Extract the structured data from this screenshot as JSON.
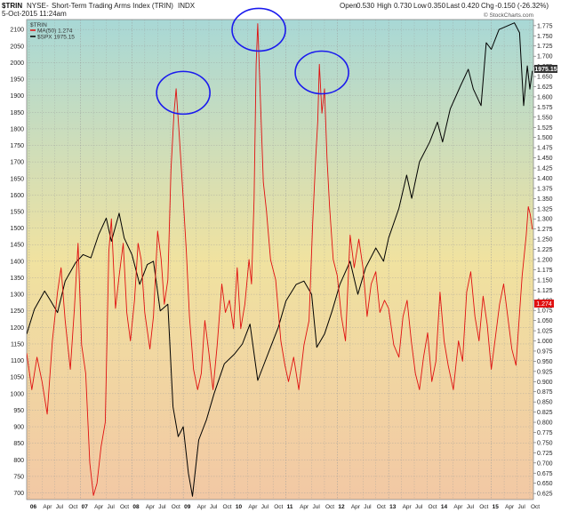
{
  "header": {
    "symbol": "$TRIN",
    "exchange": "NYSE",
    "name": "Short-Term Trading Arms Index (TRIN)",
    "index_tag": "INDX",
    "date": "5-Oct-2015 11:24am",
    "quote": {
      "open_label": "Open",
      "open": "0.530",
      "high_label": "High",
      "high": "0.730",
      "low_label": "Low",
      "low": "0.350",
      "last_label": "Last",
      "last": "0.420",
      "chg_label": "Chg",
      "chg": "-0.150 (-26.32%)"
    }
  },
  "watermark": "© StockCharts.com",
  "legend": {
    "title": "$TRIN",
    "ma": "MA(50) 1.274",
    "spx": "$SPX 1975.15"
  },
  "badges": {
    "spx_last": "1975.15",
    "ma_last": "1.274"
  },
  "colors": {
    "ma_line": "#e01010",
    "spx_line": "#000000",
    "circle": "#1a1aee",
    "bg_top": "#a8d8d6",
    "bg_mid": "#f0e2a0",
    "bg_bottom": "#f2c8a4",
    "badge_spx": "#333333",
    "badge_ma": "#e01010"
  },
  "chart_data": {
    "type": "line",
    "title": "$TRIN NYSE - Short-Term Trading Arms Index (TRIN) INDX",
    "left_axis": {
      "label": "",
      "ticks": [
        700,
        750,
        800,
        850,
        900,
        950,
        1000,
        1050,
        1100,
        1150,
        1200,
        1250,
        1300,
        1350,
        1400,
        1450,
        1500,
        1550,
        1600,
        1650,
        1700,
        1750,
        1800,
        1850,
        1900,
        1950,
        2000,
        2050,
        2100
      ],
      "range": [
        680,
        2130
      ]
    },
    "right_axis": {
      "label": "",
      "ticks": [
        "0.625",
        "0.650",
        "0.675",
        "0.700",
        "0.725",
        "0.750",
        "0.775",
        "0.800",
        "0.825",
        "0.850",
        "0.875",
        "0.900",
        "0.925",
        "0.950",
        "0.975",
        "1.000",
        "1.025",
        "1.050",
        "1.075",
        "1.100",
        "1.125",
        "1.150",
        "1.175",
        "1.200",
        "1.225",
        "1.250",
        "1.275",
        "1.300",
        "1.325",
        "1.350",
        "1.375",
        "1.400",
        "1.425",
        "1.450",
        "1.475",
        "1.500",
        "1.525",
        "1.550",
        "1.575",
        "1.600",
        "1.625",
        "1.650",
        "1.675",
        "1.700",
        "1.725",
        "1.750",
        "1.775"
      ],
      "range": [
        0.61,
        1.79
      ]
    },
    "x_axis": {
      "labels": [
        {
          "t": 2006.0,
          "label": "06",
          "bold": true
        },
        {
          "t": 2006.25,
          "label": "Apr"
        },
        {
          "t": 2006.5,
          "label": "Jul"
        },
        {
          "t": 2006.75,
          "label": "Oct"
        },
        {
          "t": 2007.0,
          "label": "07",
          "bold": true
        },
        {
          "t": 2007.25,
          "label": "Apr"
        },
        {
          "t": 2007.5,
          "label": "Jul"
        },
        {
          "t": 2007.75,
          "label": "Oct"
        },
        {
          "t": 2008.0,
          "label": "08",
          "bold": true
        },
        {
          "t": 2008.25,
          "label": "Apr"
        },
        {
          "t": 2008.5,
          "label": "Jul"
        },
        {
          "t": 2008.75,
          "label": "Oct"
        },
        {
          "t": 2009.0,
          "label": "09",
          "bold": true
        },
        {
          "t": 2009.25,
          "label": "Apr"
        },
        {
          "t": 2009.5,
          "label": "Jul"
        },
        {
          "t": 2009.75,
          "label": "Oct"
        },
        {
          "t": 2010.0,
          "label": "10",
          "bold": true
        },
        {
          "t": 2010.25,
          "label": "Apr"
        },
        {
          "t": 2010.5,
          "label": "Jul"
        },
        {
          "t": 2010.75,
          "label": "Oct"
        },
        {
          "t": 2011.0,
          "label": "11",
          "bold": true
        },
        {
          "t": 2011.25,
          "label": "Apr"
        },
        {
          "t": 2011.5,
          "label": "Jul"
        },
        {
          "t": 2011.75,
          "label": "Oct"
        },
        {
          "t": 2012.0,
          "label": "12",
          "bold": true
        },
        {
          "t": 2012.25,
          "label": "Apr"
        },
        {
          "t": 2012.5,
          "label": "Jul"
        },
        {
          "t": 2012.75,
          "label": "Oct"
        },
        {
          "t": 2013.0,
          "label": "13",
          "bold": true
        },
        {
          "t": 2013.25,
          "label": "Apr"
        },
        {
          "t": 2013.5,
          "label": "Jul"
        },
        {
          "t": 2013.75,
          "label": "Oct"
        },
        {
          "t": 2014.0,
          "label": "14",
          "bold": true
        },
        {
          "t": 2014.25,
          "label": "Apr"
        },
        {
          "t": 2014.5,
          "label": "Jul"
        },
        {
          "t": 2014.75,
          "label": "Oct"
        },
        {
          "t": 2015.0,
          "label": "15",
          "bold": true
        },
        {
          "t": 2015.25,
          "label": "Apr"
        },
        {
          "t": 2015.5,
          "label": "Jul"
        },
        {
          "t": 2015.75,
          "label": "Oct"
        }
      ],
      "range": [
        2005.95,
        2015.82
      ]
    },
    "grid": true,
    "legend_position": "top-left",
    "series": [
      {
        "name": "$SPX 1975.15",
        "axis": "left",
        "color": "#000000",
        "points": [
          [
            2005.95,
            1180
          ],
          [
            2006.1,
            1255
          ],
          [
            2006.3,
            1310
          ],
          [
            2006.42,
            1280
          ],
          [
            2006.55,
            1245
          ],
          [
            2006.7,
            1340
          ],
          [
            2006.9,
            1395
          ],
          [
            2007.05,
            1420
          ],
          [
            2007.2,
            1410
          ],
          [
            2007.35,
            1480
          ],
          [
            2007.5,
            1530
          ],
          [
            2007.6,
            1460
          ],
          [
            2007.75,
            1545
          ],
          [
            2007.85,
            1470
          ],
          [
            2008.0,
            1420
          ],
          [
            2008.15,
            1330
          ],
          [
            2008.3,
            1390
          ],
          [
            2008.42,
            1400
          ],
          [
            2008.55,
            1250
          ],
          [
            2008.7,
            1270
          ],
          [
            2008.8,
            960
          ],
          [
            2008.9,
            870
          ],
          [
            2009.0,
            900
          ],
          [
            2009.1,
            760
          ],
          [
            2009.18,
            690
          ],
          [
            2009.3,
            860
          ],
          [
            2009.45,
            920
          ],
          [
            2009.6,
            1000
          ],
          [
            2009.8,
            1090
          ],
          [
            2010.0,
            1120
          ],
          [
            2010.15,
            1150
          ],
          [
            2010.3,
            1210
          ],
          [
            2010.45,
            1040
          ],
          [
            2010.55,
            1080
          ],
          [
            2010.7,
            1140
          ],
          [
            2010.85,
            1200
          ],
          [
            2011.0,
            1280
          ],
          [
            2011.2,
            1330
          ],
          [
            2011.35,
            1340
          ],
          [
            2011.5,
            1300
          ],
          [
            2011.6,
            1140
          ],
          [
            2011.75,
            1180
          ],
          [
            2011.9,
            1250
          ],
          [
            2012.05,
            1330
          ],
          [
            2012.25,
            1400
          ],
          [
            2012.4,
            1300
          ],
          [
            2012.55,
            1380
          ],
          [
            2012.75,
            1440
          ],
          [
            2012.9,
            1400
          ],
          [
            2013.0,
            1470
          ],
          [
            2013.2,
            1560
          ],
          [
            2013.35,
            1660
          ],
          [
            2013.45,
            1590
          ],
          [
            2013.6,
            1700
          ],
          [
            2013.8,
            1760
          ],
          [
            2013.95,
            1820
          ],
          [
            2014.05,
            1760
          ],
          [
            2014.2,
            1860
          ],
          [
            2014.4,
            1930
          ],
          [
            2014.55,
            1980
          ],
          [
            2014.65,
            1920
          ],
          [
            2014.8,
            1870
          ],
          [
            2014.9,
            2060
          ],
          [
            2015.0,
            2040
          ],
          [
            2015.15,
            2100
          ],
          [
            2015.3,
            2110
          ],
          [
            2015.45,
            2120
          ],
          [
            2015.55,
            2090
          ],
          [
            2015.63,
            1870
          ],
          [
            2015.7,
            1990
          ],
          [
            2015.75,
            1920
          ],
          [
            2015.8,
            1975
          ]
        ]
      },
      {
        "name": "MA(50) 1.274",
        "axis": "right",
        "color": "#e01010",
        "points": [
          [
            2005.95,
            0.97
          ],
          [
            2006.05,
            0.88
          ],
          [
            2006.15,
            0.96
          ],
          [
            2006.25,
            0.9
          ],
          [
            2006.35,
            0.82
          ],
          [
            2006.45,
            1.0
          ],
          [
            2006.55,
            1.12
          ],
          [
            2006.62,
            1.18
          ],
          [
            2006.7,
            1.05
          ],
          [
            2006.8,
            0.93
          ],
          [
            2006.88,
            1.08
          ],
          [
            2006.95,
            1.24
          ],
          [
            2007.02,
            0.99
          ],
          [
            2007.1,
            0.92
          ],
          [
            2007.18,
            0.7
          ],
          [
            2007.25,
            0.62
          ],
          [
            2007.32,
            0.65
          ],
          [
            2007.4,
            0.74
          ],
          [
            2007.48,
            0.8
          ],
          [
            2007.55,
            1.22
          ],
          [
            2007.6,
            1.3
          ],
          [
            2007.68,
            1.08
          ],
          [
            2007.75,
            1.16
          ],
          [
            2007.83,
            1.24
          ],
          [
            2007.9,
            1.07
          ],
          [
            2007.97,
            1.0
          ],
          [
            2008.05,
            1.1
          ],
          [
            2008.12,
            1.24
          ],
          [
            2008.18,
            1.2
          ],
          [
            2008.25,
            1.07
          ],
          [
            2008.35,
            0.98
          ],
          [
            2008.42,
            1.06
          ],
          [
            2008.5,
            1.27
          ],
          [
            2008.57,
            1.2
          ],
          [
            2008.63,
            1.09
          ],
          [
            2008.7,
            1.15
          ],
          [
            2008.76,
            1.42
          ],
          [
            2008.82,
            1.56
          ],
          [
            2008.86,
            1.62
          ],
          [
            2008.92,
            1.51
          ],
          [
            2009.0,
            1.35
          ],
          [
            2009.06,
            1.22
          ],
          [
            2009.12,
            1.06
          ],
          [
            2009.2,
            0.93
          ],
          [
            2009.28,
            0.88
          ],
          [
            2009.35,
            0.92
          ],
          [
            2009.42,
            1.05
          ],
          [
            2009.5,
            0.97
          ],
          [
            2009.58,
            0.88
          ],
          [
            2009.66,
            0.99
          ],
          [
            2009.75,
            1.14
          ],
          [
            2009.82,
            1.07
          ],
          [
            2009.9,
            1.1
          ],
          [
            2009.98,
            1.03
          ],
          [
            2010.05,
            1.18
          ],
          [
            2010.12,
            1.03
          ],
          [
            2010.2,
            1.09
          ],
          [
            2010.28,
            1.2
          ],
          [
            2010.33,
            1.14
          ],
          [
            2010.38,
            1.35
          ],
          [
            2010.42,
            1.68
          ],
          [
            2010.45,
            1.78
          ],
          [
            2010.5,
            1.6
          ],
          [
            2010.56,
            1.39
          ],
          [
            2010.62,
            1.32
          ],
          [
            2010.7,
            1.2
          ],
          [
            2010.8,
            1.15
          ],
          [
            2010.9,
            1.0
          ],
          [
            2010.98,
            0.94
          ],
          [
            2011.05,
            0.9
          ],
          [
            2011.15,
            0.96
          ],
          [
            2011.25,
            0.88
          ],
          [
            2011.35,
            0.99
          ],
          [
            2011.45,
            1.05
          ],
          [
            2011.52,
            1.29
          ],
          [
            2011.58,
            1.45
          ],
          [
            2011.62,
            1.54
          ],
          [
            2011.65,
            1.68
          ],
          [
            2011.7,
            1.56
          ],
          [
            2011.75,
            1.62
          ],
          [
            2011.8,
            1.45
          ],
          [
            2011.85,
            1.33
          ],
          [
            2011.92,
            1.2
          ],
          [
            2012.0,
            1.16
          ],
          [
            2012.08,
            1.06
          ],
          [
            2012.16,
            1.0
          ],
          [
            2012.25,
            1.26
          ],
          [
            2012.33,
            1.18
          ],
          [
            2012.42,
            1.25
          ],
          [
            2012.5,
            1.18
          ],
          [
            2012.58,
            1.06
          ],
          [
            2012.66,
            1.14
          ],
          [
            2012.75,
            1.17
          ],
          [
            2012.83,
            1.07
          ],
          [
            2012.92,
            1.1
          ],
          [
            2013.0,
            1.08
          ],
          [
            2013.1,
            0.99
          ],
          [
            2013.2,
            0.96
          ],
          [
            2013.28,
            1.06
          ],
          [
            2013.36,
            1.1
          ],
          [
            2013.44,
            1.0
          ],
          [
            2013.52,
            0.92
          ],
          [
            2013.6,
            0.88
          ],
          [
            2013.68,
            0.96
          ],
          [
            2013.76,
            1.02
          ],
          [
            2013.84,
            0.9
          ],
          [
            2013.92,
            0.95
          ],
          [
            2014.0,
            1.12
          ],
          [
            2014.08,
            1.0
          ],
          [
            2014.16,
            0.94
          ],
          [
            2014.26,
            0.88
          ],
          [
            2014.36,
            1.0
          ],
          [
            2014.44,
            0.95
          ],
          [
            2014.52,
            1.12
          ],
          [
            2014.6,
            1.17
          ],
          [
            2014.68,
            1.06
          ],
          [
            2014.76,
            1.0
          ],
          [
            2014.84,
            1.11
          ],
          [
            2014.92,
            1.04
          ],
          [
            2015.0,
            0.93
          ],
          [
            2015.08,
            1.01
          ],
          [
            2015.16,
            1.09
          ],
          [
            2015.24,
            1.14
          ],
          [
            2015.32,
            1.06
          ],
          [
            2015.4,
            0.98
          ],
          [
            2015.48,
            0.94
          ],
          [
            2015.54,
            1.05
          ],
          [
            2015.6,
            1.16
          ],
          [
            2015.64,
            1.21
          ],
          [
            2015.68,
            1.26
          ],
          [
            2015.72,
            1.33
          ],
          [
            2015.76,
            1.31
          ],
          [
            2015.8,
            1.274
          ]
        ]
      }
    ],
    "annotations": [
      {
        "type": "circle",
        "x": 2009.0,
        "y": 1.61
      },
      {
        "type": "circle",
        "x": 2010.47,
        "y": 1.765
      },
      {
        "type": "circle",
        "x": 2011.7,
        "y": 1.66
      }
    ]
  }
}
